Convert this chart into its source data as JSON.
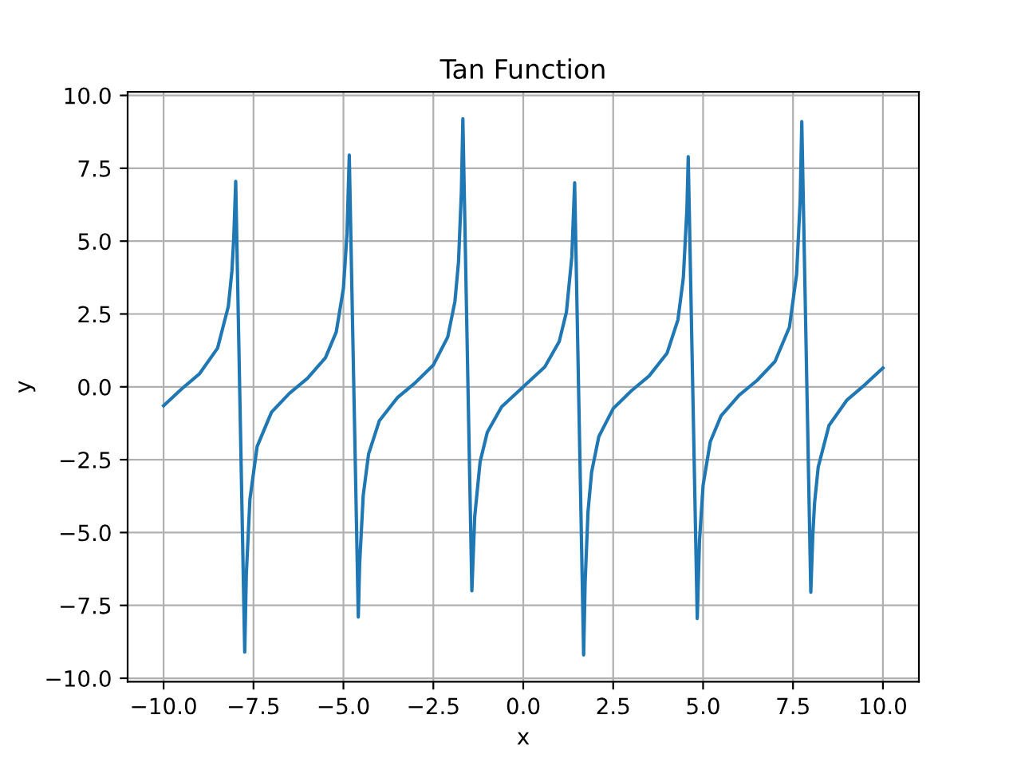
{
  "chart_data": {
    "type": "line",
    "title": "Tan Function",
    "xlabel": "x",
    "ylabel": "y",
    "grid": true,
    "series": [
      {
        "color": "#1f77b4",
        "x": [
          -10,
          -9.5,
          -9,
          -8.5,
          -8.2,
          -8.1,
          -8.05,
          -7.995,
          -7.744,
          -7.7,
          -7.6,
          -7.4,
          -7.0,
          -6.5,
          -6.0,
          -5.5,
          -5.2,
          -5.0,
          -4.9,
          -4.8375,
          -4.5865,
          -4.55,
          -4.45,
          -4.3,
          -4.0,
          -3.5,
          -3.0,
          -2.5,
          -2.1,
          -1.9,
          -1.8,
          -1.72,
          -1.679,
          -1.4289,
          -1.35,
          -1.2,
          -1.0,
          -0.6,
          0,
          0.6,
          1.0,
          1.2,
          1.35,
          1.4289,
          1.679,
          1.72,
          1.8,
          1.9,
          2.1,
          2.5,
          3.0,
          3.5,
          4.0,
          4.3,
          4.45,
          4.55,
          4.5865,
          4.8375,
          4.9,
          5.0,
          5.2,
          5.5,
          6.0,
          6.5,
          7.0,
          7.4,
          7.6,
          7.7,
          7.744,
          7.995,
          8.05,
          8.1,
          8.2,
          8.5,
          9.0,
          9.5,
          10
        ],
        "values": [
          -0.648,
          -0.075,
          0.452,
          1.326,
          2.76,
          3.98,
          5.09,
          7.05,
          -9.1,
          -6.44,
          -3.86,
          -2.05,
          -0.87,
          -0.22,
          0.291,
          0.996,
          1.88,
          3.38,
          5.27,
          7.95,
          -7.9,
          -6.1,
          -3.73,
          -2.3,
          -1.16,
          -0.374,
          0.143,
          0.747,
          1.71,
          2.93,
          4.29,
          6.71,
          9.2,
          -7.0,
          -4.46,
          -2.57,
          -1.557,
          -0.684,
          0,
          0.684,
          1.557,
          2.57,
          4.46,
          7.0,
          -9.2,
          -6.71,
          -4.29,
          -2.93,
          -1.71,
          -0.747,
          -0.143,
          0.374,
          1.16,
          2.3,
          3.73,
          6.1,
          7.9,
          -7.95,
          -5.27,
          -3.38,
          -1.88,
          -0.996,
          -0.291,
          0.22,
          0.87,
          2.05,
          3.86,
          6.44,
          9.1,
          -7.05,
          -5.09,
          -3.98,
          -2.76,
          -1.326,
          -0.452,
          0.075,
          0.648
        ]
      }
    ],
    "xlim": [
      -11,
      11
    ],
    "ylim": [
      -10.12,
      10.12
    ],
    "xticks": [
      {
        "value": -10,
        "label": "−10.0"
      },
      {
        "value": -7.5,
        "label": "−7.5"
      },
      {
        "value": -5,
        "label": "−5.0"
      },
      {
        "value": -2.5,
        "label": "−2.5"
      },
      {
        "value": 0,
        "label": "0.0"
      },
      {
        "value": 2.5,
        "label": "2.5"
      },
      {
        "value": 5,
        "label": "5.0"
      },
      {
        "value": 7.5,
        "label": "7.5"
      },
      {
        "value": 10,
        "label": "10.0"
      }
    ],
    "yticks": [
      {
        "value": -10,
        "label": "−10.0"
      },
      {
        "value": -7.5,
        "label": "−7.5"
      },
      {
        "value": -5,
        "label": "−5.0"
      },
      {
        "value": -2.5,
        "label": "−2.5"
      },
      {
        "value": 0,
        "label": "0.0"
      },
      {
        "value": 2.5,
        "label": "2.5"
      },
      {
        "value": 5,
        "label": "5.0"
      },
      {
        "value": 7.5,
        "label": "7.5"
      },
      {
        "value": 10,
        "label": "10.0"
      }
    ]
  }
}
